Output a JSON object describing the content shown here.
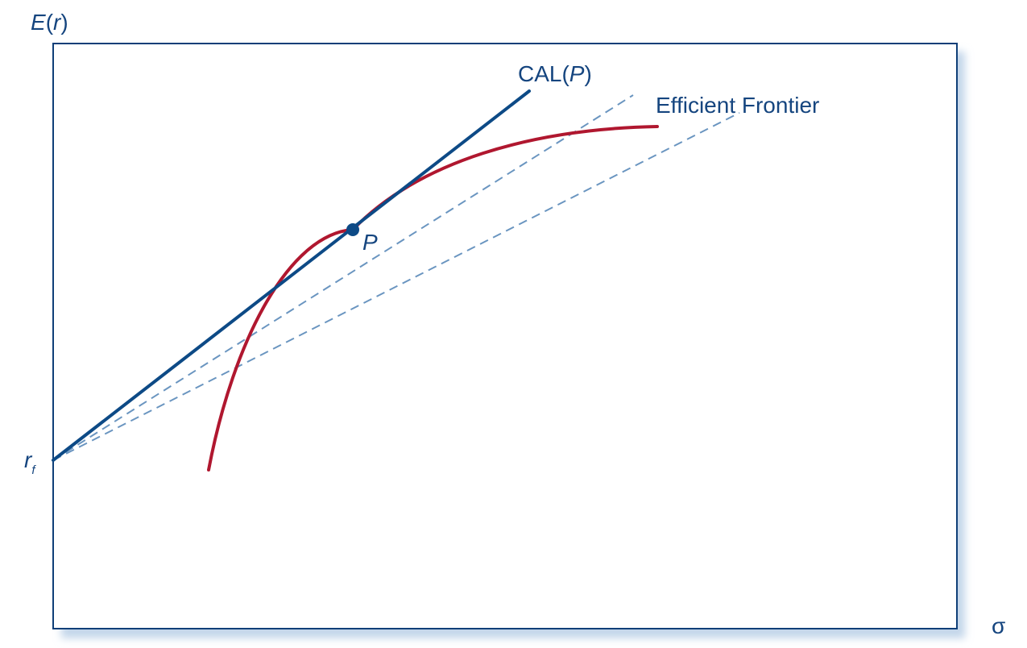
{
  "colors": {
    "cal_line": "#0d4a86",
    "dashed_lines": "#6a95c0",
    "frontier": "#b0172f",
    "frame": "#0f3f78",
    "frame_shadow": "#c3d6ea",
    "text": "#15457f",
    "point": "#0d4a86"
  },
  "axes": {
    "y_label_main": "E",
    "y_label_paren_open": "(",
    "y_label_var": "r",
    "y_label_paren_close": ")",
    "x_label": "σ",
    "rf_label_main": "r",
    "rf_label_sub": "f"
  },
  "labels": {
    "cal_prefix": "CAL(",
    "cal_var": "P",
    "cal_suffix": ")",
    "efficient_frontier": "Efficient Frontier",
    "point_p": "P"
  }
}
